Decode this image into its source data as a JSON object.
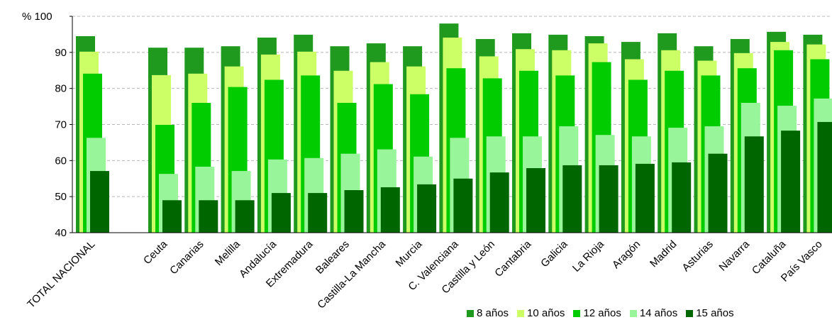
{
  "chart_data": {
    "type": "bar",
    "y_axis_label": "% 100",
    "ylim": [
      40,
      100
    ],
    "yticks": [
      40,
      50,
      60,
      70,
      80,
      90
    ],
    "grid": true,
    "legend_position": "bottom-right",
    "categories": [
      "TOTAL NACIONAL",
      "Ceuta",
      "Canarias",
      "Melilla",
      "Andalucía",
      "Extremadura",
      "Baleares",
      "Castilla-La Mancha",
      "Murcia",
      "C. Valenciana",
      "Castilla y León",
      "Cantabria",
      "Galicia",
      "La Rioja",
      "Aragón",
      "Madrid",
      "Asturias",
      "Navarra",
      "Cataluña",
      "País Vasco"
    ],
    "series": [
      {
        "name": "8 años",
        "color": "#1f9a1f",
        "values": [
          94.5,
          91.3,
          91.3,
          91.7,
          94.1,
          94.9,
          91.7,
          92.5,
          91.7,
          98.0,
          93.7,
          95.3,
          94.9,
          94.5,
          92.9,
          95.3,
          91.7,
          93.7,
          95.7,
          94.9
        ]
      },
      {
        "name": "10 años",
        "color": "#ccff66",
        "values": [
          90.2,
          83.7,
          84.1,
          86.1,
          89.4,
          90.2,
          84.9,
          87.3,
          86.1,
          94.1,
          88.9,
          90.9,
          90.6,
          92.5,
          88.1,
          90.6,
          87.7,
          89.8,
          92.9,
          92.2
        ]
      },
      {
        "name": "12 años",
        "color": "#00cc00",
        "values": [
          84.1,
          69.9,
          76.0,
          80.4,
          82.4,
          83.6,
          76.0,
          81.2,
          78.4,
          85.6,
          82.8,
          84.9,
          83.6,
          87.3,
          82.4,
          84.9,
          83.6,
          85.6,
          90.6,
          88.1
        ]
      },
      {
        "name": "14 años",
        "color": "#99f599",
        "values": [
          66.3,
          56.3,
          58.3,
          57.1,
          60.3,
          60.7,
          61.9,
          63.1,
          61.1,
          66.3,
          66.7,
          66.7,
          69.5,
          67.1,
          66.7,
          69.1,
          69.5,
          76.0,
          75.2,
          77.2
        ]
      },
      {
        "name": "15 años",
        "color": "#006600",
        "values": [
          57.1,
          49.0,
          49.0,
          49.0,
          51.0,
          51.0,
          51.8,
          52.6,
          53.4,
          55.0,
          56.7,
          57.9,
          58.7,
          58.7,
          59.1,
          59.5,
          61.9,
          66.7,
          68.3,
          70.7
        ]
      }
    ]
  }
}
